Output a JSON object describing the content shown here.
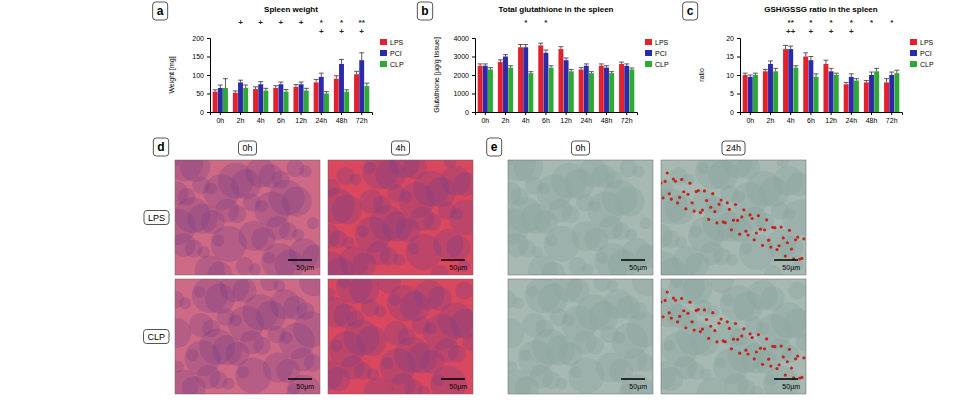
{
  "chart_data": [
    {
      "type": "bar",
      "panel": "a",
      "title": "Spleen weight",
      "y_label": "Weight [mg]",
      "categories": [
        "0h",
        "2h",
        "4h",
        "6h",
        "12h",
        "24h",
        "48h",
        "72h"
      ],
      "series": [
        {
          "name": "LPS",
          "color": "#e3202b",
          "values": [
            55,
            52,
            62,
            65,
            68,
            80,
            90,
            102
          ],
          "errors": [
            5,
            5,
            6,
            6,
            6,
            8,
            8,
            8
          ]
        },
        {
          "name": "PCI",
          "color": "#2b2ba8",
          "values": [
            65,
            80,
            75,
            75,
            75,
            95,
            130,
            140
          ],
          "errors": [
            8,
            6,
            7,
            6,
            6,
            10,
            12,
            20
          ]
        },
        {
          "name": "CLP",
          "color": "#2fa836",
          "values": [
            65,
            65,
            58,
            55,
            58,
            50,
            55,
            70
          ],
          "errors": [
            25,
            8,
            6,
            6,
            6,
            5,
            5,
            8
          ]
        }
      ],
      "annotations": [
        [],
        [
          "+"
        ],
        [
          "+"
        ],
        [
          "+"
        ],
        [
          "+"
        ],
        [
          "*",
          "+"
        ],
        [
          "*",
          "+"
        ],
        [
          "**",
          "+"
        ]
      ],
      "ylim": [
        0,
        200
      ],
      "yticks": [
        0,
        50,
        100,
        150,
        200
      ],
      "legend": "right"
    },
    {
      "type": "bar",
      "panel": "b",
      "title": "Total glutathione in the spleen",
      "y_label": "Glutathione [µg/g tissue]",
      "categories": [
        "0h",
        "2h",
        "4h",
        "6h",
        "12h",
        "24h",
        "48h",
        "72h"
      ],
      "series": [
        {
          "name": "LPS",
          "color": "#e3202b",
          "values": [
            2500,
            2700,
            3500,
            3600,
            3400,
            2300,
            2500,
            2600
          ],
          "errors": [
            100,
            120,
            150,
            120,
            130,
            100,
            100,
            100
          ]
        },
        {
          "name": "PCI",
          "color": "#2b2ba8",
          "values": [
            2500,
            3000,
            3500,
            3200,
            2800,
            2500,
            2400,
            2500
          ],
          "errors": [
            100,
            100,
            150,
            150,
            120,
            100,
            100,
            100
          ]
        },
        {
          "name": "CLP",
          "color": "#2fa836",
          "values": [
            2300,
            2400,
            2100,
            2400,
            2200,
            2100,
            2100,
            2300
          ],
          "errors": [
            100,
            100,
            80,
            100,
            100,
            80,
            80,
            80
          ]
        }
      ],
      "annotations": [
        [],
        [],
        [
          "*"
        ],
        [
          "*"
        ],
        [],
        [],
        [],
        []
      ],
      "ylim": [
        0,
        4000
      ],
      "yticks": [
        0,
        1000,
        2000,
        3000,
        4000
      ],
      "legend": "right"
    },
    {
      "type": "bar",
      "panel": "c",
      "title": "GSH/GSSG ratio in the spleen",
      "y_label": "ratio",
      "categories": [
        "0h",
        "2h",
        "4h",
        "6h",
        "12h",
        "24h",
        "48h",
        "72h"
      ],
      "series": [
        {
          "name": "LPS",
          "color": "#e3202b",
          "values": [
            10,
            11,
            17,
            15,
            13,
            7.5,
            8,
            8
          ],
          "errors": [
            0.5,
            0.5,
            1,
            1,
            1,
            0.5,
            0.5,
            1
          ]
        },
        {
          "name": "PCI",
          "color": "#2b2ba8",
          "values": [
            9.5,
            13,
            17,
            14,
            11,
            9.5,
            10,
            10
          ],
          "errors": [
            0.5,
            0.8,
            0.8,
            1,
            0.8,
            0.8,
            0.8,
            0.8
          ]
        },
        {
          "name": "CLP",
          "color": "#2fa836",
          "values": [
            10,
            11,
            12,
            9.5,
            10,
            8.5,
            11,
            10.5
          ],
          "errors": [
            0.5,
            0.8,
            0.5,
            0.8,
            0.5,
            0.5,
            0.8,
            0.8
          ]
        }
      ],
      "annotations": [
        [],
        [],
        [
          "**",
          "++"
        ],
        [
          "*",
          "+"
        ],
        [
          "*",
          "+"
        ],
        [
          "*",
          "+"
        ],
        [
          "*"
        ],
        [
          "*"
        ]
      ],
      "ylim": [
        0,
        20
      ],
      "yticks": [
        0,
        5,
        10,
        15,
        20
      ],
      "legend": "right"
    }
  ],
  "histology": [
    {
      "panel": "d",
      "columns": [
        "0h",
        "4h"
      ],
      "rows": [
        "LPS",
        "CLP"
      ],
      "scale_bar": "50µm"
    },
    {
      "panel": "e",
      "columns": [
        "0h",
        "24h"
      ],
      "scale_bar": "50µm"
    }
  ]
}
